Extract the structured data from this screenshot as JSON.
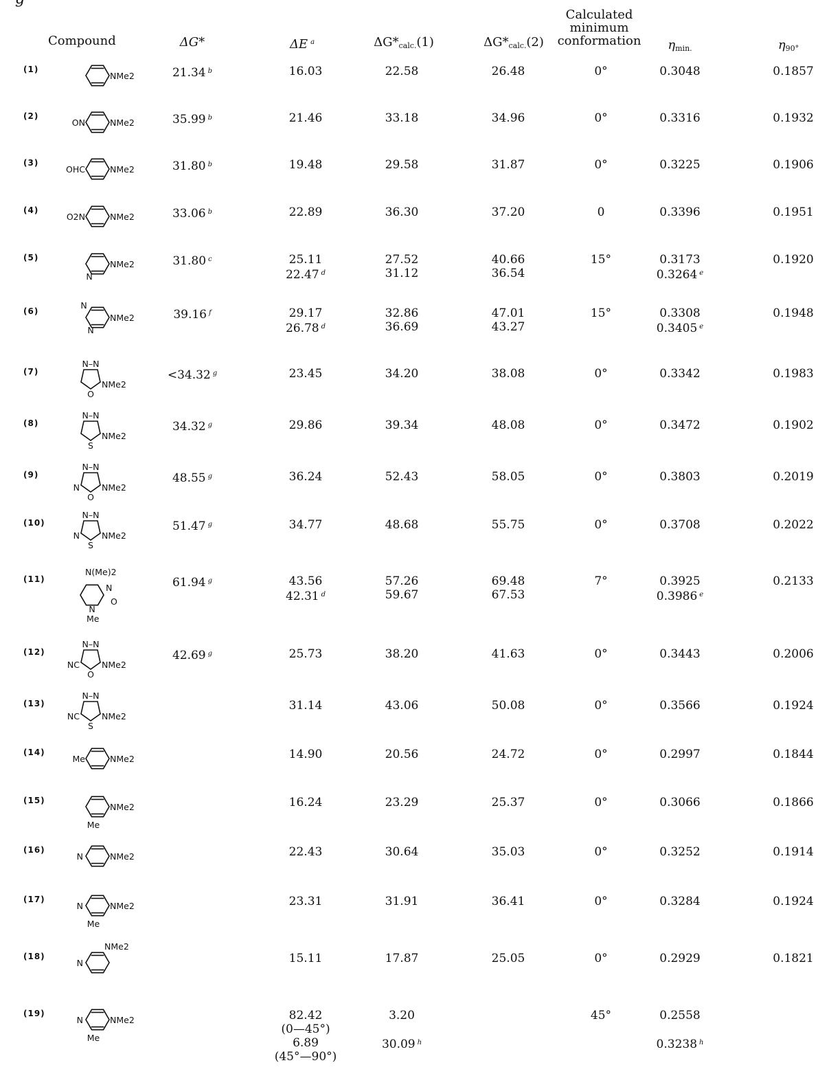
{
  "table": {
    "cropped_top_text": "g",
    "columns": [
      {
        "label": "Compound"
      },
      {
        "label": "ΔG*"
      },
      {
        "label": "ΔE",
        "footnote": "a"
      },
      {
        "label": "ΔG*",
        "subscript": "calc.",
        "suffix": "(1)"
      },
      {
        "label": "ΔG*",
        "subscript": "calc.",
        "suffix": "(2)"
      },
      {
        "lines": [
          "Calculated",
          "minimum",
          "conformation"
        ]
      },
      {
        "label": "η",
        "subscript": "min."
      },
      {
        "label": "η",
        "subscript": "90°"
      }
    ],
    "rows": [
      {
        "number": "(1)",
        "structure": "benzene",
        "substituents": {
          "right": "NMe2"
        },
        "dg": {
          "value": "21.34",
          "fn": "b"
        },
        "de": [
          {
            "value": "16.03"
          }
        ],
        "calc1": [
          "22.58"
        ],
        "calc2": [
          "26.48"
        ],
        "conformation": "0°",
        "eta_min": [
          {
            "value": "0.3048"
          }
        ],
        "eta_90": "0.1857"
      },
      {
        "number": "(2)",
        "structure": "benzene",
        "substituents": {
          "left": "ON",
          "right": "NMe2"
        },
        "dg": {
          "value": "35.99",
          "fn": "b"
        },
        "de": [
          {
            "value": "21.46"
          }
        ],
        "calc1": [
          "33.18"
        ],
        "calc2": [
          "34.96"
        ],
        "conformation": "0°",
        "eta_min": [
          {
            "value": "0.3316"
          }
        ],
        "eta_90": "0.1932"
      },
      {
        "number": "(3)",
        "structure": "benzene",
        "substituents": {
          "left": "OHC",
          "right": "NMe2"
        },
        "dg": {
          "value": "31.80",
          "fn": "b"
        },
        "de": [
          {
            "value": "19.48"
          }
        ],
        "calc1": [
          "29.58"
        ],
        "calc2": [
          "31.87"
        ],
        "conformation": "0°",
        "eta_min": [
          {
            "value": "0.3225"
          }
        ],
        "eta_90": "0.1906"
      },
      {
        "number": "(4)",
        "structure": "benzene",
        "substituents": {
          "left": "O2N",
          "right": "NMe2"
        },
        "dg": {
          "value": "33.06",
          "fn": "b"
        },
        "de": [
          {
            "value": "22.89"
          }
        ],
        "calc1": [
          "36.30"
        ],
        "calc2": [
          "37.20"
        ],
        "conformation": "0",
        "eta_min": [
          {
            "value": "0.3396"
          }
        ],
        "eta_90": "0.1951"
      },
      {
        "number": "(5)",
        "structure": "pyridine-2",
        "substituents": {
          "right": "NMe2",
          "ringN": "N"
        },
        "dg": {
          "value": "31.80",
          "fn": "c"
        },
        "de": [
          {
            "value": "25.11"
          },
          {
            "value": "22.47",
            "fn": "d"
          }
        ],
        "calc1": [
          "27.52",
          "31.12"
        ],
        "calc2": [
          "40.66",
          "36.54"
        ],
        "conformation": "15°",
        "eta_min": [
          {
            "value": "0.3173"
          },
          {
            "value": "0.3264",
            "fn": "e"
          }
        ],
        "eta_90": "0.1920"
      },
      {
        "number": "(6)",
        "structure": "pyrimidine",
        "substituents": {
          "right": "NMe2",
          "ringN": "N"
        },
        "dg": {
          "value": "39.16",
          "fn": "f"
        },
        "de": [
          {
            "value": "29.17"
          },
          {
            "value": "26.78",
            "fn": "d"
          }
        ],
        "calc1": [
          "32.86",
          "36.69"
        ],
        "calc2": [
          "47.01",
          "43.27"
        ],
        "conformation": "15°",
        "eta_min": [
          {
            "value": "0.3308"
          },
          {
            "value": "0.3405",
            "fn": "e"
          }
        ],
        "eta_90": "0.1948"
      },
      {
        "number": "(7)",
        "structure": "five-ring",
        "substituents": {
          "top": "N–N",
          "hetero": "O",
          "right": "NMe2"
        },
        "dg": {
          "value": "<34.32",
          "fn": "g"
        },
        "de": [
          {
            "value": "23.45"
          }
        ],
        "calc1": [
          "34.20"
        ],
        "calc2": [
          "38.08"
        ],
        "conformation": "0°",
        "eta_min": [
          {
            "value": "0.3342"
          }
        ],
        "eta_90": "0.1983"
      },
      {
        "number": "(8)",
        "structure": "five-ring",
        "substituents": {
          "top": "N–N",
          "hetero": "S",
          "right": "NMe2"
        },
        "dg": {
          "value": "34.32",
          "fn": "g"
        },
        "de": [
          {
            "value": "29.86"
          }
        ],
        "calc1": [
          "39.34"
        ],
        "calc2": [
          "48.08"
        ],
        "conformation": "0°",
        "eta_min": [
          {
            "value": "0.3472"
          }
        ],
        "eta_90": "0.1902"
      },
      {
        "number": "(9)",
        "structure": "five-ring",
        "substituents": {
          "top": "N–N",
          "hetero": "O",
          "left": "N",
          "right": "NMe2"
        },
        "dg": {
          "value": "48.55",
          "fn": "g"
        },
        "de": [
          {
            "value": "36.24"
          }
        ],
        "calc1": [
          "52.43"
        ],
        "calc2": [
          "58.05"
        ],
        "conformation": "0°",
        "eta_min": [
          {
            "value": "0.3803"
          }
        ],
        "eta_90": "0.2019"
      },
      {
        "number": "(10)",
        "structure": "five-ring",
        "substituents": {
          "top": "N–N",
          "hetero": "S",
          "left": "N",
          "right": "NMe2"
        },
        "dg": {
          "value": "51.47",
          "fn": "g"
        },
        "de": [
          {
            "value": "34.77"
          }
        ],
        "calc1": [
          "48.68"
        ],
        "calc2": [
          "55.75"
        ],
        "conformation": "0°",
        "eta_min": [
          {
            "value": "0.3708"
          }
        ],
        "eta_90": "0.2022"
      },
      {
        "number": "(11)",
        "structure": "pyrimidinone",
        "substituents": {
          "top": "N(Me)2",
          "ringN": "N",
          "ringN1": "N",
          "oxo": "O",
          "nsub": "Me"
        },
        "dg": {
          "value": "61.94",
          "fn": "g"
        },
        "de": [
          {
            "value": "43.56"
          },
          {
            "value": "42.31",
            "fn": "d"
          }
        ],
        "calc1": [
          "57.26",
          "59.67"
        ],
        "calc2": [
          "69.48",
          "67.53"
        ],
        "conformation": "7°",
        "eta_min": [
          {
            "value": "0.3925"
          },
          {
            "value": "0.3986",
            "fn": "e"
          }
        ],
        "eta_90": "0.2133"
      },
      {
        "number": "(12)",
        "structure": "five-ring",
        "substituents": {
          "top": "N–N",
          "hetero": "O",
          "left": "NC",
          "right": "NMe2"
        },
        "dg": {
          "value": "42.69",
          "fn": "g"
        },
        "de": [
          {
            "value": "25.73"
          }
        ],
        "calc1": [
          "38.20"
        ],
        "calc2": [
          "41.63"
        ],
        "conformation": "0°",
        "eta_min": [
          {
            "value": "0.3443"
          }
        ],
        "eta_90": "0.2006"
      },
      {
        "number": "(13)",
        "structure": "five-ring",
        "substituents": {
          "top": "N–N",
          "hetero": "S",
          "left": "NC",
          "right": "NMe2"
        },
        "dg": {
          "value": "",
          "fn": ""
        },
        "de": [
          {
            "value": "31.14"
          }
        ],
        "calc1": [
          "43.06"
        ],
        "calc2": [
          "50.08"
        ],
        "conformation": "0°",
        "eta_min": [
          {
            "value": "0.3566"
          }
        ],
        "eta_90": "0.1924"
      },
      {
        "number": "(14)",
        "structure": "benzene",
        "substituents": {
          "left": "Me",
          "right": "NMe2"
        },
        "dg": {
          "value": "",
          "fn": ""
        },
        "de": [
          {
            "value": "14.90"
          }
        ],
        "calc1": [
          "20.56"
        ],
        "calc2": [
          "24.72"
        ],
        "conformation": "0°",
        "eta_min": [
          {
            "value": "0.2997"
          }
        ],
        "eta_90": "0.1844"
      },
      {
        "number": "(15)",
        "structure": "benzene",
        "substituents": {
          "bottom": "Me",
          "right": "NMe2"
        },
        "dg": {
          "value": "",
          "fn": ""
        },
        "de": [
          {
            "value": "16.24"
          }
        ],
        "calc1": [
          "23.29"
        ],
        "calc2": [
          "25.37"
        ],
        "conformation": "0°",
        "eta_min": [
          {
            "value": "0.3066"
          }
        ],
        "eta_90": "0.1866"
      },
      {
        "number": "(16)",
        "structure": "pyridine-4",
        "substituents": {
          "ringN": "N",
          "right": "NMe2"
        },
        "dg": {
          "value": "",
          "fn": ""
        },
        "de": [
          {
            "value": "22.43"
          }
        ],
        "calc1": [
          "30.64"
        ],
        "calc2": [
          "35.03"
        ],
        "conformation": "0°",
        "eta_min": [
          {
            "value": "0.3252"
          }
        ],
        "eta_90": "0.1914"
      },
      {
        "number": "(17)",
        "structure": "pyridine-4",
        "substituents": {
          "ringN": "N",
          "right": "NMe2",
          "bottom": "Me"
        },
        "dg": {
          "value": "",
          "fn": ""
        },
        "de": [
          {
            "value": "23.31"
          }
        ],
        "calc1": [
          "31.91"
        ],
        "calc2": [
          "36.41"
        ],
        "conformation": "0°",
        "eta_min": [
          {
            "value": "0.3284"
          }
        ],
        "eta_90": "0.1924"
      },
      {
        "number": "(18)",
        "structure": "pyridine-3",
        "substituents": {
          "ringN": "N",
          "topright": "NMe2"
        },
        "dg": {
          "value": "",
          "fn": ""
        },
        "de": [
          {
            "value": "15.11"
          }
        ],
        "calc1": [
          "17.87"
        ],
        "calc2": [
          "25.05"
        ],
        "conformation": "0°",
        "eta_min": [
          {
            "value": "0.2929"
          }
        ],
        "eta_90": "0.1821"
      },
      {
        "number": "(19)",
        "structure": "pyridine-4",
        "substituents": {
          "ringN": "N",
          "right": "NMe2",
          "bottom": "Me"
        },
        "dg": {
          "value": "",
          "fn": ""
        },
        "de": [
          {
            "value": "82.42"
          },
          {
            "value": "(0—45°)"
          },
          {
            "value": "6.89"
          },
          {
            "value": "(45°—90°)"
          }
        ],
        "calc1": [
          "3.20",
          "",
          "30.09"
        ],
        "calc1_fn": "h",
        "calc2": [],
        "conformation": "45°",
        "eta_min": [
          {
            "value": "0.2558"
          },
          {
            "value": ""
          },
          {
            "value": "0.3238",
            "fn": "h"
          }
        ],
        "eta_90": ""
      }
    ]
  }
}
